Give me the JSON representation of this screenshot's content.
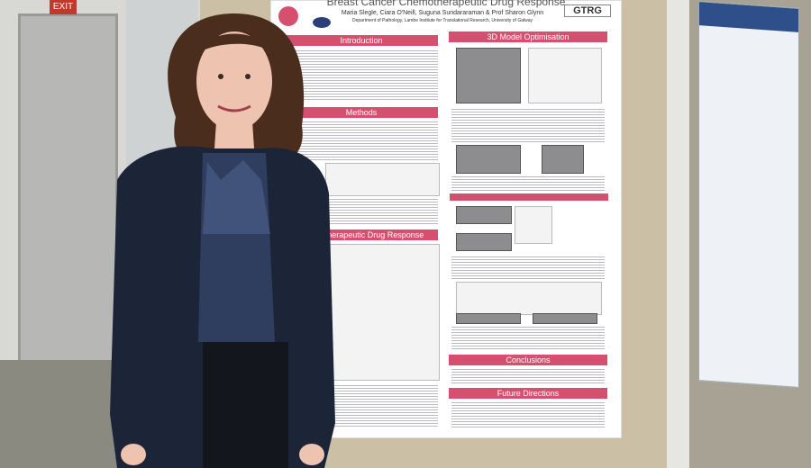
{
  "sign": "EXIT",
  "poster": {
    "title": "Breast Cancer Chemotherapeutic Drug Response",
    "authors": "Maria Slegle, Ciara O'Neill, Suguna Sundararaman & Prof Sharon Glynn",
    "affiliation": "Department of Pathology, Lambe Institute for Translational Research, University of Galway",
    "logo": "GTRG",
    "sections": [
      "Introduction",
      "3D Model Optimisation",
      "Methods",
      "Chemotherapeutic Drug Response",
      "Conclusions",
      "Future Directions"
    ]
  }
}
